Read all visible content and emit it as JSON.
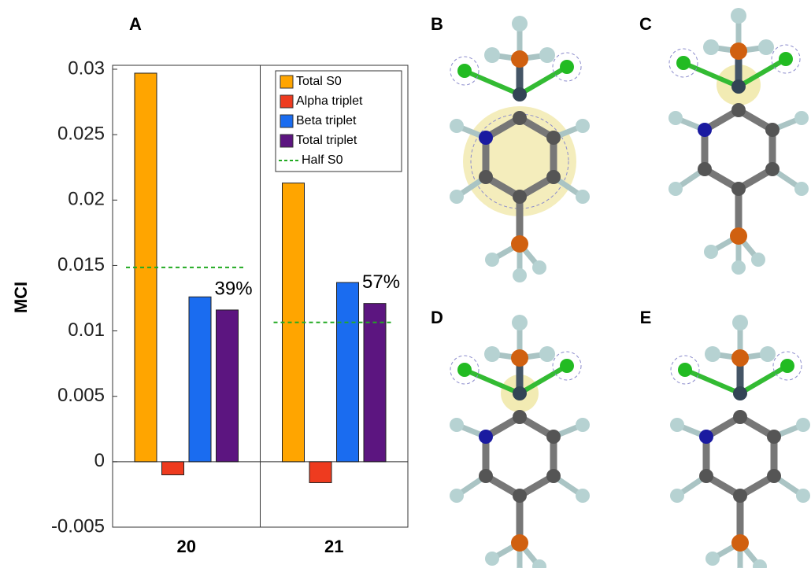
{
  "chart_data": {
    "type": "bar",
    "panel_label": "A",
    "ylabel": "MCI",
    "categories": [
      "20",
      "21"
    ],
    "series": [
      {
        "name": "Total S0",
        "color": "#ffa500",
        "values": [
          0.0297,
          0.0213
        ]
      },
      {
        "name": "Alpha triplet",
        "color": "#ee3b1f",
        "values": [
          -0.001,
          -0.0016
        ]
      },
      {
        "name": "Beta triplet",
        "color": "#1a6cf0",
        "values": [
          0.0126,
          0.0137
        ]
      },
      {
        "name": "Total triplet",
        "color": "#5c1580",
        "values": [
          0.0116,
          0.0121
        ]
      }
    ],
    "half_s0": {
      "name": "Half S0",
      "color": "#22aa22",
      "values": [
        0.01485,
        0.01065
      ]
    },
    "annotations": [
      "39%",
      "57%"
    ],
    "ylim": [
      -0.005,
      0.03
    ],
    "yticks": [
      -0.005,
      0,
      0.005,
      0.01,
      0.015,
      0.02,
      0.025,
      0.03
    ]
  },
  "panels": [
    "B",
    "C",
    "D",
    "E"
  ]
}
